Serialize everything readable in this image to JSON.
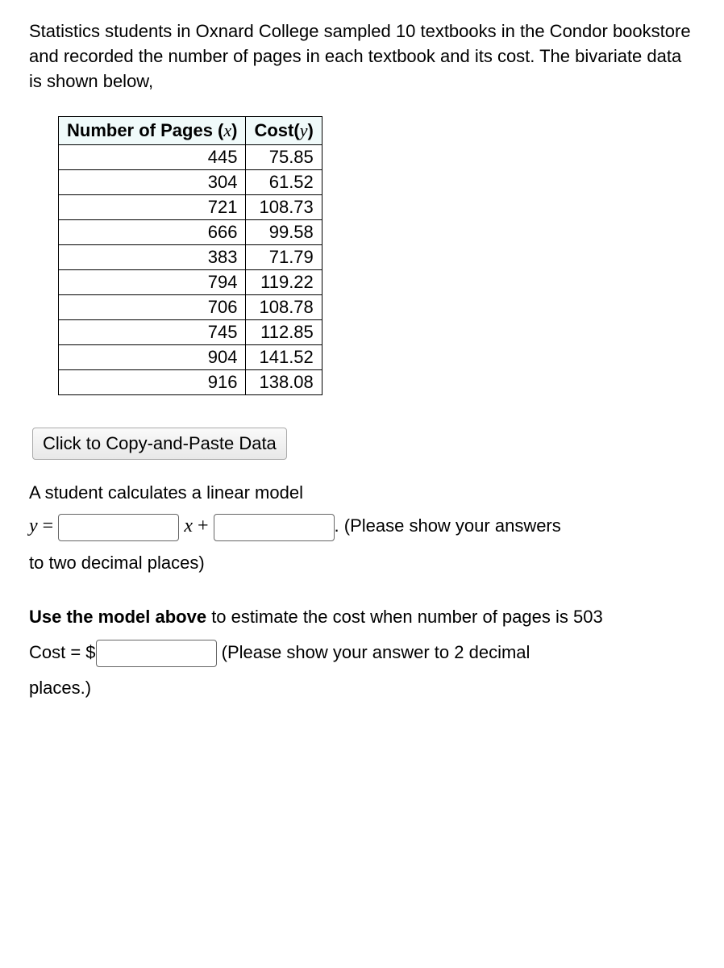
{
  "intro": "Statistics students in Oxnard College sampled 10 textbooks in the Condor bookstore and recorded the number of pages in each textbook and its cost. The bivariate data is shown below,",
  "table": {
    "header_pages_label": "Number of Pages (",
    "header_pages_var": "x",
    "header_pages_close": ")",
    "header_cost_label": "Cost(",
    "header_cost_var": "y",
    "header_cost_close": ")",
    "rows": [
      {
        "pages": "445",
        "cost": "75.85"
      },
      {
        "pages": "304",
        "cost": "61.52"
      },
      {
        "pages": "721",
        "cost": "108.73"
      },
      {
        "pages": "666",
        "cost": "99.58"
      },
      {
        "pages": "383",
        "cost": "71.79"
      },
      {
        "pages": "794",
        "cost": "119.22"
      },
      {
        "pages": "706",
        "cost": "108.78"
      },
      {
        "pages": "745",
        "cost": "112.85"
      },
      {
        "pages": "904",
        "cost": "141.52"
      },
      {
        "pages": "916",
        "cost": "138.08"
      }
    ]
  },
  "copy_button": "Click to Copy-and-Paste Data",
  "linear_model_text": "A student calculates a linear model",
  "model": {
    "y": "y",
    "eq": " = ",
    "x": "x",
    "plus": " + ",
    "period_after": ". (Please show your answers to two decimal places)",
    "tail_line1": ". (Please show your answers",
    "tail_line2": "to two decimal places)"
  },
  "use_model_bold": "Use the model above",
  "use_model_rest": " to estimate the cost when number of pages is 503",
  "cost_label": "Cost = $",
  "cost_tail1": "(Please show your answer to 2 decimal",
  "cost_tail2": "places.)"
}
